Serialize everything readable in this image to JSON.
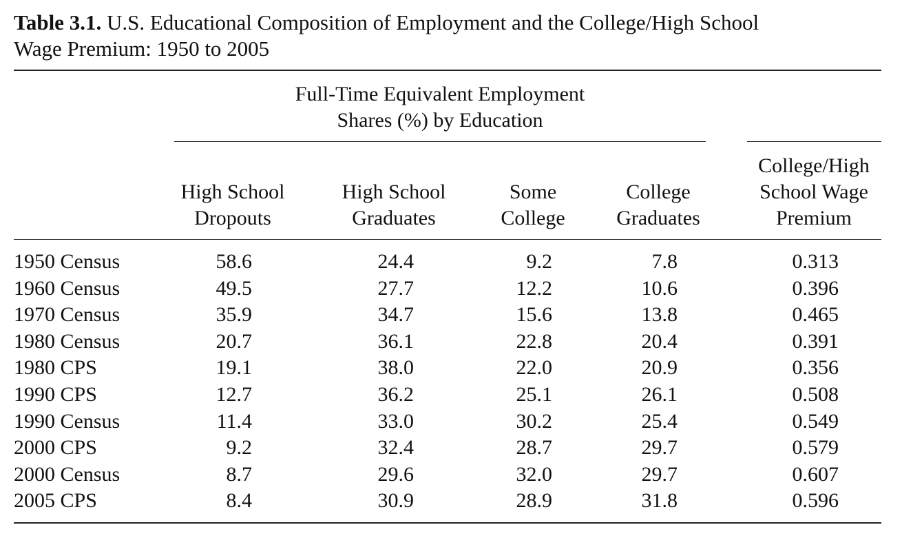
{
  "caption": {
    "label": "Table 3.1.",
    "title_line1": "U.S. Educational Composition of Employment and the College/High School",
    "title_line2": "Wage Premium: 1950 to 2005"
  },
  "spanner": {
    "line1": "Full-Time Equivalent Employment",
    "line2": "Shares (%) by Education"
  },
  "columns": [
    {
      "line1": "",
      "line2": "High School",
      "line3": "Dropouts"
    },
    {
      "line1": "",
      "line2": "High School",
      "line3": "Graduates"
    },
    {
      "line1": "",
      "line2": "Some",
      "line3": "College"
    },
    {
      "line1": "",
      "line2": "College",
      "line3": "Graduates"
    },
    {
      "line1": "College/High",
      "line2": "School Wage",
      "line3": "Premium"
    }
  ],
  "rows": [
    {
      "label": "1950 Census",
      "values": [
        "58.6",
        "24.4",
        "9.2",
        "7.8",
        "0.313"
      ]
    },
    {
      "label": "1960 Census",
      "values": [
        "49.5",
        "27.7",
        "12.2",
        "10.6",
        "0.396"
      ]
    },
    {
      "label": "1970 Census",
      "values": [
        "35.9",
        "34.7",
        "15.6",
        "13.8",
        "0.465"
      ]
    },
    {
      "label": "1980 Census",
      "values": [
        "20.7",
        "36.1",
        "22.8",
        "20.4",
        "0.391"
      ]
    },
    {
      "label": "1980 CPS",
      "values": [
        "19.1",
        "38.0",
        "22.0",
        "20.9",
        "0.356"
      ]
    },
    {
      "label": "1990 CPS",
      "values": [
        "12.7",
        "36.2",
        "25.1",
        "26.1",
        "0.508"
      ]
    },
    {
      "label": "1990 Census",
      "values": [
        "11.4",
        "33.0",
        "30.2",
        "25.4",
        "0.549"
      ]
    },
    {
      "label": "2000 CPS",
      "values": [
        "9.2",
        "32.4",
        "28.7",
        "29.7",
        "0.579"
      ]
    },
    {
      "label": "2000 Census",
      "values": [
        "8.7",
        "29.6",
        "32.0",
        "29.7",
        "0.607"
      ]
    },
    {
      "label": "2005 CPS",
      "values": [
        "8.4",
        "30.9",
        "28.9",
        "31.8",
        "0.596"
      ]
    }
  ]
}
